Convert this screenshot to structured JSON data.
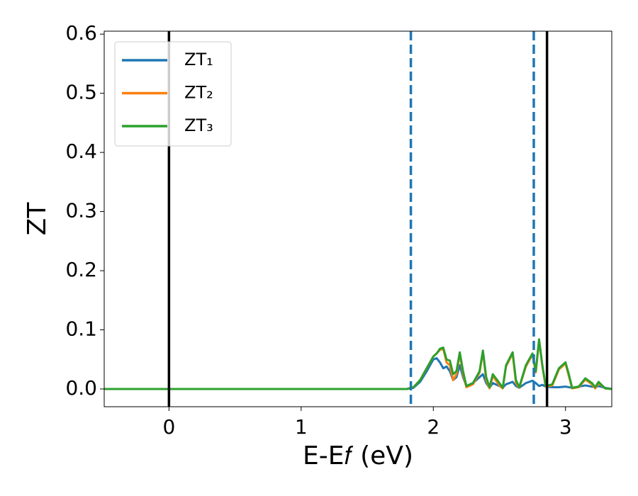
{
  "chart_data": {
    "type": "line",
    "xlabel": "E-E𝑓 (eV)",
    "ylabel": "ZT",
    "xlim": [
      -0.49,
      3.35
    ],
    "ylim": [
      -0.03,
      0.605
    ],
    "xticks": [
      0,
      1,
      2,
      3
    ],
    "yticks": [
      {
        "value": 0,
        "label": "0.0"
      },
      0.1,
      0.2,
      0.3,
      0.4,
      0.5,
      0.6
    ],
    "grid": false,
    "legend": "upper left",
    "vlines": [
      {
        "x": 0,
        "color": "#000000",
        "linestyle": "solid"
      },
      {
        "x": 1.83,
        "color": "#1f77b4",
        "linestyle": "dashed"
      },
      {
        "x": 2.76,
        "color": "#1f77b4",
        "linestyle": "dashed"
      },
      {
        "x": 2.86,
        "color": "#000000",
        "linestyle": "solid"
      }
    ],
    "x": [
      -0.5,
      1.75,
      1.8,
      1.85,
      1.9,
      1.95,
      2.0,
      2.025,
      2.05,
      2.075,
      2.1,
      2.125,
      2.15,
      2.175,
      2.2,
      2.225,
      2.25,
      2.3,
      2.35,
      2.375,
      2.4,
      2.425,
      2.45,
      2.5,
      2.525,
      2.55,
      2.6,
      2.625,
      2.65,
      2.7,
      2.75,
      2.775,
      2.8,
      2.825,
      2.85,
      2.9,
      2.95,
      3.0,
      3.025,
      3.05,
      3.1,
      3.15,
      3.2,
      3.225,
      3.25,
      3.3,
      3.35
    ],
    "series": [
      {
        "name": "ZT₁",
        "color": "#1f77b4",
        "values": [
          0,
          0,
          0,
          0.002,
          0.012,
          0.03,
          0.05,
          0.052,
          0.045,
          0.035,
          0.038,
          0.03,
          0.015,
          0.02,
          0.04,
          0.02,
          0.005,
          0.01,
          0.02,
          0.025,
          0.01,
          0.002,
          0.01,
          0.005,
          0.002,
          0.008,
          0.012,
          0.005,
          0.002,
          0.01,
          0.014,
          0.01,
          0.005,
          0.007,
          0.004,
          0.003,
          0.003,
          0.004,
          0.003,
          0.002,
          0.004,
          0.006,
          0.004,
          0.003,
          0.005,
          0.002,
          0
        ]
      },
      {
        "name": "ZT₂",
        "color": "#ff7f0e",
        "values": [
          0,
          0,
          0,
          0.003,
          0.015,
          0.035,
          0.055,
          0.06,
          0.066,
          0.068,
          0.045,
          0.04,
          0.015,
          0.025,
          0.06,
          0.025,
          0.003,
          0.008,
          0.028,
          0.063,
          0.015,
          0.001,
          0.022,
          0.006,
          0.001,
          0.038,
          0.06,
          0.01,
          0.002,
          0.038,
          0.058,
          0.028,
          0.082,
          0.038,
          0.004,
          0.006,
          0.033,
          0.043,
          0.022,
          0.001,
          0.003,
          0.016,
          0.008,
          0.001,
          0.01,
          0.001,
          0
        ]
      },
      {
        "name": "ZT₃",
        "color": "#2ca02c",
        "values": [
          0,
          0,
          0,
          0.003,
          0.015,
          0.035,
          0.055,
          0.06,
          0.068,
          0.07,
          0.05,
          0.048,
          0.025,
          0.03,
          0.062,
          0.03,
          0.005,
          0.01,
          0.03,
          0.065,
          0.02,
          0.003,
          0.025,
          0.01,
          0.002,
          0.04,
          0.062,
          0.015,
          0.003,
          0.04,
          0.06,
          0.03,
          0.084,
          0.04,
          0.005,
          0.008,
          0.035,
          0.045,
          0.025,
          0.002,
          0.004,
          0.018,
          0.01,
          0.003,
          0.012,
          0.001,
          0
        ]
      }
    ]
  }
}
